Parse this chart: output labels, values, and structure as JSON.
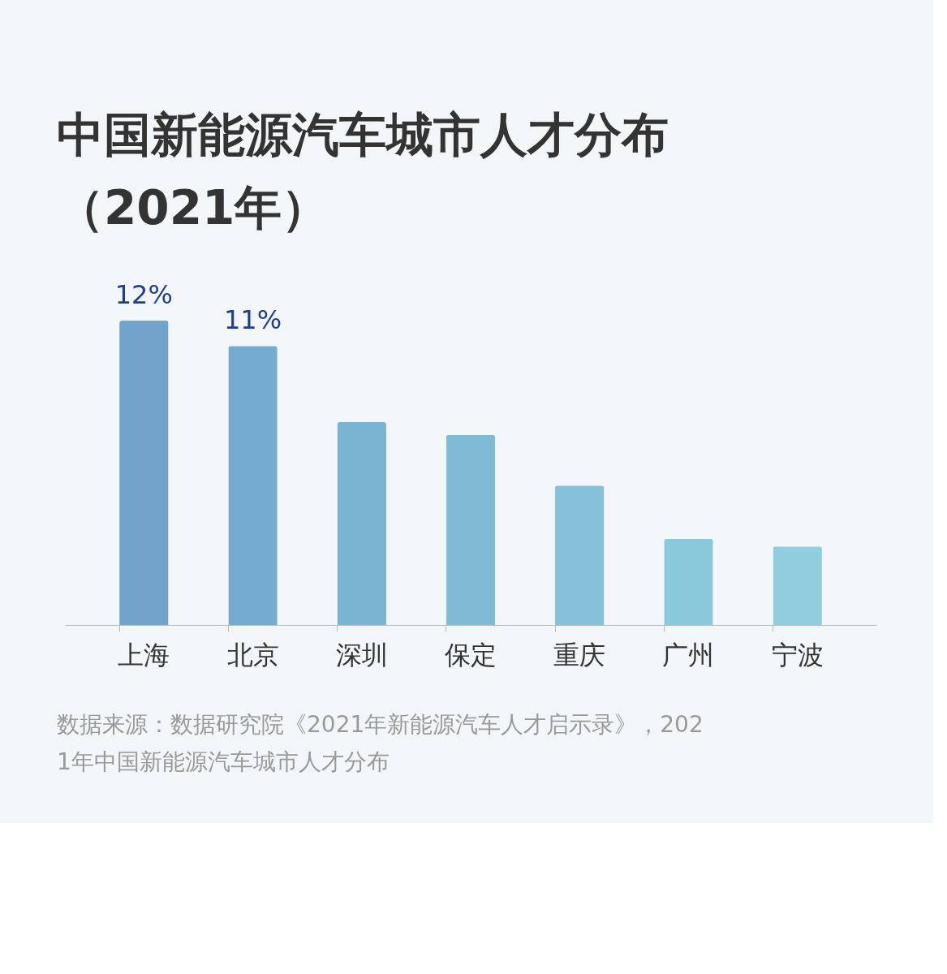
{
  "chart_data": {
    "type": "bar",
    "title": [
      "中国新能源汽车城市人才分布",
      "（2021年）"
    ],
    "categories": [
      "上海",
      "北京",
      "深圳",
      "保定",
      "重庆",
      "广州",
      "宁波"
    ],
    "values": [
      12,
      11,
      8.0,
      7.5,
      5.5,
      3.4,
      3.1
    ],
    "value_labels": [
      "12%",
      "11%",
      null,
      null,
      null,
      null,
      null
    ],
    "colors": [
      "#6a9fc8",
      "#6ea7cc",
      "#74b0d0",
      "#79b7d3",
      "#7ebfd7",
      "#84c6da",
      "#89cbdd"
    ],
    "annotations": [
      "数据来源：数据研究院《2021年新能源汽车人才启示录》，2021年中国新能源汽车城市人才分布"
    ]
  }
}
